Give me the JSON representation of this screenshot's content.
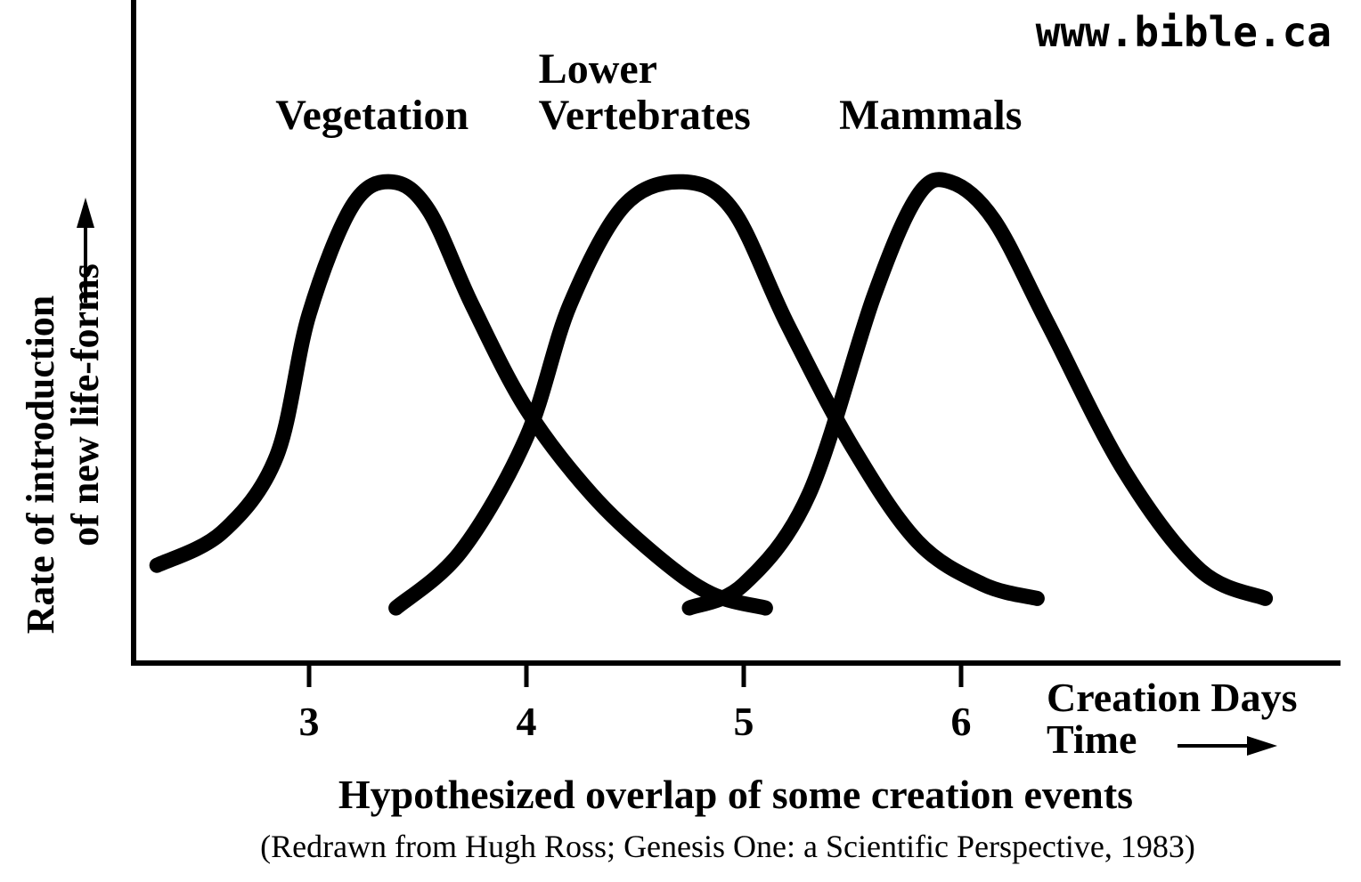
{
  "watermark": "www.bible.ca",
  "chart_data": {
    "type": "line",
    "title": "Hypothesized overlap of some creation events",
    "subtitle": "(Redrawn from Hugh Ross; Genesis One: a Scientific Perspective, 1983)",
    "ylabel_lines": [
      "Rate of introduction",
      "of new life-forms"
    ],
    "xlabel_lines": [
      "Creation Days",
      "Time"
    ],
    "x_ticks": [
      "3",
      "4",
      "5",
      "6"
    ],
    "xlim": [
      2.2,
      7.7
    ],
    "ylim": [
      0,
      100
    ],
    "grid": false,
    "legend": "none",
    "series": [
      {
        "name": "Vegetation",
        "x": [
          2.3,
          2.6,
          2.85,
          3.0,
          3.2,
          3.38,
          3.55,
          3.75,
          4.0,
          4.3,
          4.6,
          4.85,
          5.1
        ],
        "y": [
          15,
          22,
          38,
          68,
          91,
          96,
          90,
          70,
          48,
          30,
          17,
          9,
          6
        ]
      },
      {
        "name": "Lower Vertebrates",
        "x": [
          3.4,
          3.7,
          4.0,
          4.2,
          4.45,
          4.72,
          4.95,
          5.2,
          5.5,
          5.8,
          6.1,
          6.35
        ],
        "y": [
          6,
          18,
          42,
          70,
          91,
          96,
          90,
          66,
          40,
          20,
          11,
          8
        ]
      },
      {
        "name": "Mammals",
        "x": [
          4.75,
          5.0,
          5.3,
          5.6,
          5.8,
          5.95,
          6.15,
          6.4,
          6.75,
          7.1,
          7.4
        ],
        "y": [
          6,
          11,
          30,
          72,
          93,
          96,
          88,
          66,
          35,
          14,
          8
        ]
      }
    ]
  }
}
